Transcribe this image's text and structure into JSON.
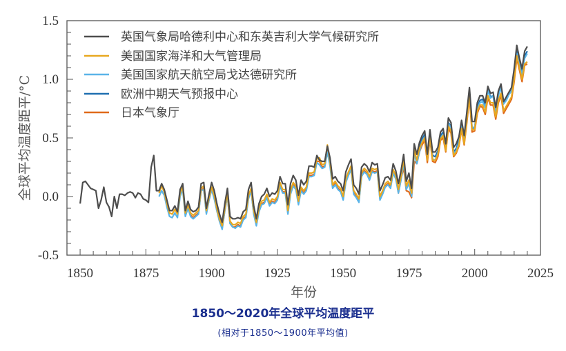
{
  "caption": {
    "title": "1850～2020年全球平均温度距平",
    "subtitle": "(相对于1850～1900年平均值)"
  },
  "chart_data": {
    "type": "line",
    "title": "",
    "xlabel": "年份",
    "ylabel": "全球平均温度距平/°C",
    "xlim": [
      1845,
      2025
    ],
    "ylim": [
      -0.5,
      1.5
    ],
    "xticks": [
      1850,
      1875,
      1900,
      1925,
      1950,
      1975,
      2000,
      2025
    ],
    "xtick_labels": [
      "1850",
      "1875",
      "1900",
      "1925",
      "1950",
      "1975",
      "2000",
      "2025"
    ],
    "yticks": [
      -0.5,
      0.0,
      0.5,
      1.0,
      1.5
    ],
    "ytick_labels": [
      "-0.5",
      "0.0",
      "0.5",
      "1.0",
      "1.5"
    ],
    "grid": false,
    "legend_position": "top-left",
    "series": [
      {
        "name": "英国气象局哈德利中心和东英吉利大学气候研究所",
        "color": "#4d4d4d",
        "start_year": 1850,
        "values": [
          -0.06,
          0.12,
          0.13,
          0.1,
          0.07,
          0.06,
          0.05,
          -0.1,
          -0.03,
          0.08,
          -0.05,
          -0.09,
          -0.17,
          0.0,
          -0.1,
          0.02,
          0.02,
          0.01,
          0.03,
          0.04,
          0.03,
          -0.01,
          0.03,
          0.02,
          -0.02,
          -0.03,
          -0.05,
          0.25,
          0.35,
          0.05,
          0.05,
          0.11,
          0.06,
          -0.03,
          -0.12,
          -0.12,
          -0.08,
          -0.13,
          0.06,
          0.11,
          -0.12,
          -0.04,
          -0.11,
          -0.13,
          -0.12,
          -0.09,
          0.11,
          0.12,
          -0.1,
          0.02,
          0.12,
          0.05,
          -0.06,
          -0.15,
          -0.22,
          -0.06,
          0.07,
          -0.17,
          -0.19,
          -0.19,
          -0.18,
          -0.19,
          -0.13,
          -0.11,
          0.06,
          0.12,
          -0.08,
          -0.19,
          -0.06,
          0.0,
          0.02,
          0.07,
          0.0,
          0.03,
          0.02,
          0.05,
          0.17,
          0.11,
          0.11,
          -0.07,
          0.11,
          0.18,
          0.14,
          0.01,
          0.14,
          0.1,
          0.13,
          0.26,
          0.26,
          0.25,
          0.35,
          0.31,
          0.3,
          0.3,
          0.43,
          0.33,
          0.15,
          0.17,
          0.13,
          0.11,
          0.05,
          0.21,
          0.27,
          0.32,
          0.1,
          0.07,
          0.02,
          0.25,
          0.28,
          0.26,
          0.21,
          0.29,
          0.27,
          0.28,
          0.05,
          0.1,
          0.16,
          0.17,
          0.14,
          0.28,
          0.22,
          0.11,
          0.22,
          0.36,
          0.13,
          0.2,
          0.07,
          0.45,
          0.36,
          0.46,
          0.52,
          0.56,
          0.36,
          0.57,
          0.38,
          0.38,
          0.42,
          0.55,
          0.58,
          0.45,
          0.67,
          0.63,
          0.42,
          0.45,
          0.51,
          0.65,
          0.52,
          0.72,
          0.93,
          0.64,
          0.64,
          0.8,
          0.86,
          0.86,
          0.8,
          0.94,
          0.88,
          0.89,
          0.76,
          0.9,
          0.96,
          0.81,
          0.85,
          0.89,
          0.93,
          1.09,
          1.29,
          1.18,
          1.09,
          1.24,
          1.28
        ]
      },
      {
        "name": "美国国家海洋和大气管理局",
        "color": "#e8a820",
        "start_year": 1880,
        "values": [
          0.03,
          0.09,
          0.04,
          -0.06,
          -0.14,
          -0.15,
          -0.11,
          -0.15,
          0.03,
          0.08,
          -0.14,
          -0.07,
          -0.14,
          -0.16,
          -0.14,
          -0.12,
          0.07,
          0.09,
          -0.12,
          -0.01,
          0.08,
          0.01,
          -0.1,
          -0.19,
          -0.25,
          -0.1,
          0.03,
          -0.21,
          -0.24,
          -0.24,
          -0.22,
          -0.23,
          -0.17,
          -0.15,
          0.01,
          0.07,
          -0.12,
          -0.22,
          -0.1,
          -0.04,
          -0.03,
          0.02,
          -0.05,
          -0.02,
          -0.03,
          0.0,
          0.12,
          0.06,
          0.06,
          -0.12,
          0.05,
          0.12,
          0.09,
          -0.04,
          0.08,
          0.05,
          0.08,
          0.2,
          0.2,
          0.21,
          0.32,
          0.33,
          0.27,
          0.28,
          0.44,
          0.3,
          0.1,
          0.13,
          0.09,
          0.07,
          0.0,
          0.15,
          0.21,
          0.26,
          0.05,
          0.02,
          -0.02,
          0.2,
          0.24,
          0.22,
          0.17,
          0.24,
          0.23,
          0.24,
          0.0,
          0.05,
          0.11,
          0.13,
          0.1,
          0.23,
          0.18,
          0.06,
          0.17,
          0.32,
          0.09,
          0.14,
          0.03,
          0.4,
          0.31,
          0.41,
          0.46,
          0.5,
          0.31,
          0.51,
          0.31,
          0.31,
          0.36,
          0.49,
          0.52,
          0.39,
          0.6,
          0.56,
          0.35,
          0.38,
          0.44,
          0.58,
          0.45,
          0.65,
          0.86,
          0.57,
          0.57,
          0.73,
          0.78,
          0.78,
          0.72,
          0.86,
          0.8,
          0.8,
          0.68,
          0.82,
          0.88,
          0.73,
          0.77,
          0.81,
          0.85,
          1.0,
          1.2,
          1.1,
          1.0,
          1.13,
          1.15
        ]
      },
      {
        "name": "美国国家航天航空局戈达德研究所",
        "color": "#5ab4e8",
        "start_year": 1880,
        "values": [
          0.0,
          0.05,
          0.01,
          -0.09,
          -0.17,
          -0.18,
          -0.14,
          -0.18,
          0.0,
          0.06,
          -0.17,
          -0.1,
          -0.17,
          -0.19,
          -0.17,
          -0.15,
          0.05,
          0.06,
          -0.15,
          -0.03,
          0.06,
          -0.02,
          -0.12,
          -0.21,
          -0.28,
          -0.12,
          0.01,
          -0.23,
          -0.26,
          -0.27,
          -0.25,
          -0.26,
          -0.2,
          -0.18,
          -0.02,
          0.05,
          -0.15,
          -0.25,
          -0.13,
          -0.07,
          -0.06,
          -0.01,
          -0.08,
          -0.05,
          -0.06,
          -0.03,
          0.09,
          0.03,
          0.03,
          -0.15,
          0.02,
          0.09,
          0.06,
          -0.07,
          0.05,
          0.02,
          0.05,
          0.17,
          0.17,
          0.18,
          0.29,
          0.27,
          0.24,
          0.25,
          0.38,
          0.26,
          0.07,
          0.1,
          0.06,
          0.04,
          -0.03,
          0.12,
          0.18,
          0.23,
          0.02,
          -0.01,
          -0.05,
          0.17,
          0.21,
          0.19,
          0.14,
          0.21,
          0.2,
          0.21,
          -0.03,
          0.02,
          0.08,
          0.1,
          0.07,
          0.2,
          0.15,
          0.03,
          0.14,
          0.29,
          0.06,
          0.11,
          0.0,
          0.37,
          0.28,
          0.38,
          0.47,
          0.51,
          0.32,
          0.5,
          0.32,
          0.31,
          0.37,
          0.5,
          0.53,
          0.4,
          0.62,
          0.59,
          0.37,
          0.39,
          0.46,
          0.61,
          0.48,
          0.66,
          0.86,
          0.59,
          0.59,
          0.75,
          0.8,
          0.81,
          0.76,
          0.9,
          0.84,
          0.86,
          0.72,
          0.86,
          0.93,
          0.79,
          0.82,
          0.87,
          0.9,
          1.04,
          1.22,
          1.12,
          1.04,
          1.18,
          1.22
        ]
      },
      {
        "name": "欧洲中期天气预报中心",
        "color": "#1f6fb0",
        "start_year": 1979,
        "values": [
          0.42,
          0.49,
          0.53,
          0.33,
          0.54,
          0.35,
          0.34,
          0.39,
          0.52,
          0.55,
          0.42,
          0.63,
          0.6,
          0.38,
          0.41,
          0.48,
          0.62,
          0.49,
          0.68,
          0.88,
          0.58,
          0.59,
          0.76,
          0.82,
          0.83,
          0.77,
          0.91,
          0.85,
          0.86,
          0.73,
          0.88,
          0.93,
          0.79,
          0.84,
          0.88,
          0.91,
          1.07,
          1.24,
          1.14,
          1.06,
          1.2,
          1.24
        ]
      },
      {
        "name": "日本气象厅",
        "color": "#e06a1a",
        "start_year": 1891,
        "values": [
          -0.09,
          -0.16,
          -0.18,
          -0.16,
          -0.14,
          0.05,
          0.07,
          -0.14,
          -0.03,
          0.06,
          -0.01,
          -0.12,
          -0.21,
          -0.27,
          -0.12,
          0.01,
          -0.23,
          -0.26,
          -0.26,
          -0.24,
          -0.25,
          -0.19,
          -0.17,
          -0.01,
          0.05,
          -0.14,
          -0.24,
          -0.12,
          -0.06,
          -0.05,
          0.0,
          -0.07,
          -0.04,
          -0.05,
          -0.02,
          0.1,
          0.04,
          0.04,
          -0.14,
          0.03,
          0.1,
          0.07,
          -0.06,
          0.06,
          0.03,
          0.06,
          0.18,
          0.18,
          0.19,
          0.3,
          0.3,
          0.25,
          0.26,
          0.4,
          0.28,
          0.08,
          0.11,
          0.07,
          0.05,
          -0.02,
          0.13,
          0.19,
          0.24,
          0.03,
          0.0,
          -0.04,
          0.18,
          0.22,
          0.2,
          0.15,
          0.22,
          0.21,
          0.22,
          -0.02,
          0.03,
          0.09,
          0.11,
          0.08,
          0.21,
          0.16,
          0.03,
          0.15,
          0.25,
          0.05,
          0.04,
          -0.01,
          0.3,
          0.28,
          0.38,
          0.44,
          0.48,
          0.29,
          0.49,
          0.3,
          0.29,
          0.34,
          0.48,
          0.5,
          0.38,
          0.58,
          0.54,
          0.34,
          0.37,
          0.43,
          0.57,
          0.44,
          0.63,
          0.84,
          0.55,
          0.56,
          0.71,
          0.77,
          0.76,
          0.7,
          0.84,
          0.78,
          0.78,
          0.66,
          0.8,
          0.86,
          0.71,
          0.75,
          0.79,
          0.83,
          0.98,
          1.18,
          1.08,
          0.98,
          1.12,
          1.13
        ]
      }
    ]
  }
}
